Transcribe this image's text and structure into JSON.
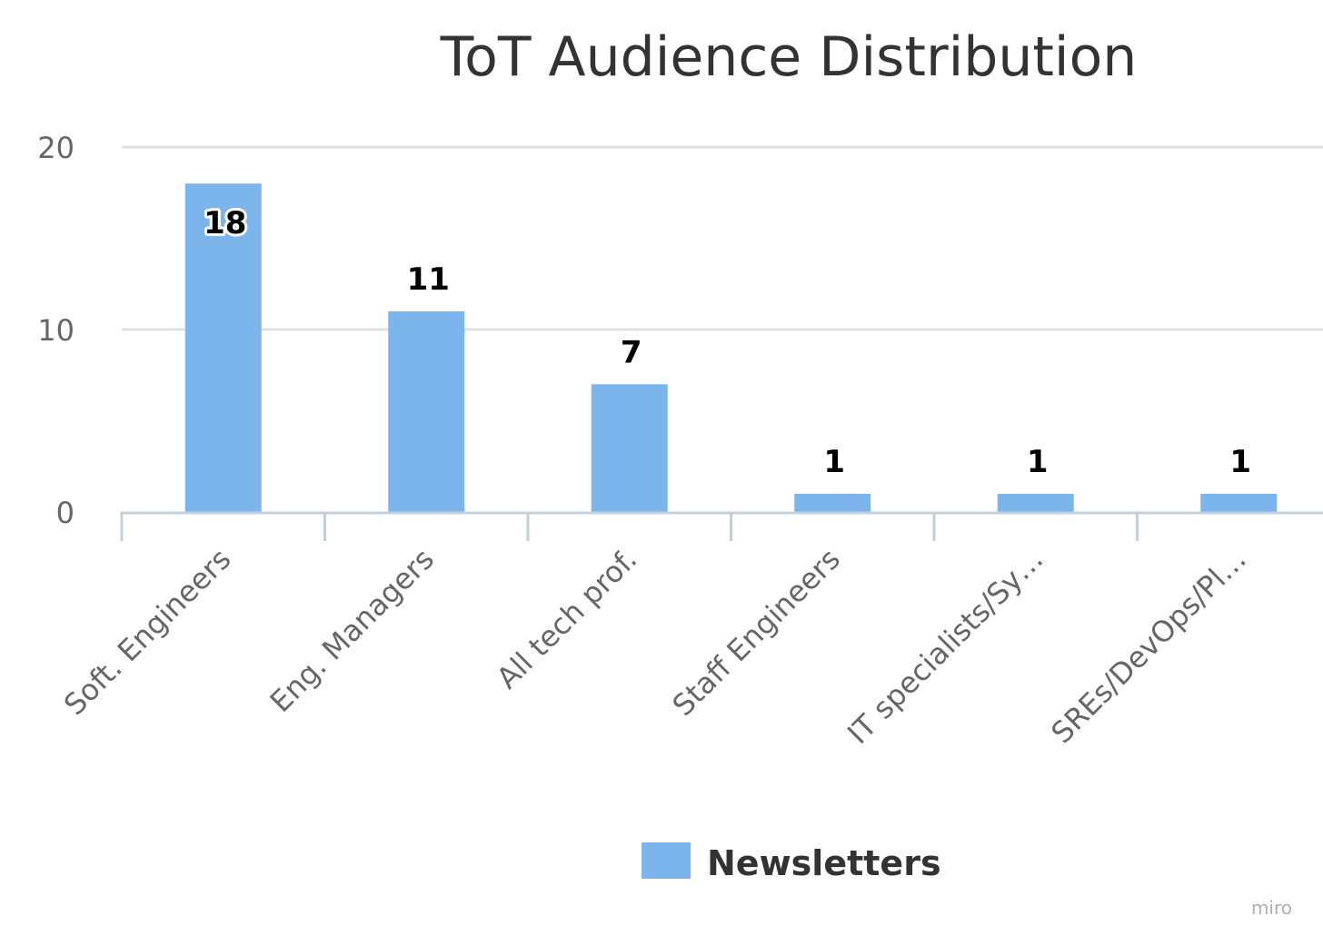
{
  "chart_data": {
    "type": "bar",
    "title": "ToT Audience Distribution",
    "xlabel": "",
    "ylabel": "",
    "categories": [
      "Soft. Engineers",
      "Eng. Managers",
      "All tech prof.",
      "Staff Engineers",
      "IT specialists/Sy…",
      "SREs/DevOps/Pl…"
    ],
    "series": [
      {
        "name": "Newsletters",
        "values": [
          18,
          11,
          7,
          1,
          1,
          1
        ],
        "color": "#7cb5ec"
      }
    ],
    "ylim": [
      0,
      20
    ],
    "yticks": [
      "0",
      "10",
      "20"
    ],
    "grid": true,
    "legend": "bottom-center",
    "data_labels": true
  },
  "watermark": "miro",
  "colors": {
    "bar": "#7cb5ec",
    "grid": "#e0e0e0",
    "axis": "#c0d0e0"
  }
}
